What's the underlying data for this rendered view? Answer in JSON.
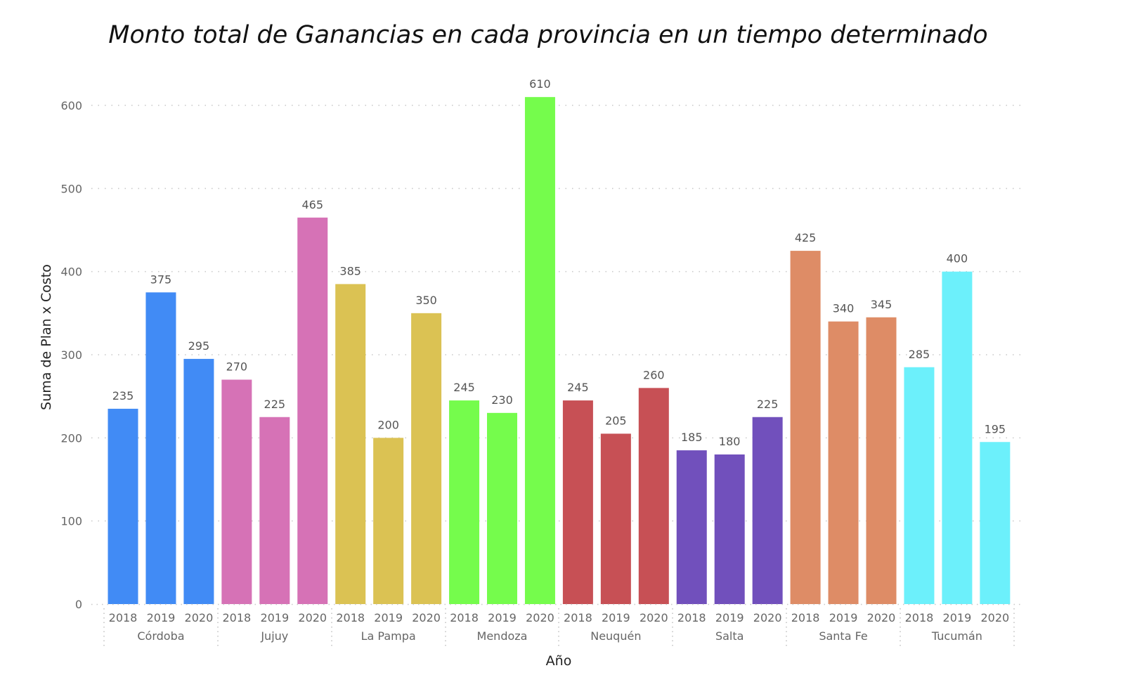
{
  "chart_data": {
    "type": "bar",
    "title": "Monto total de Ganancias en cada provincia en un tiempo determinado",
    "xlabel": "Año",
    "ylabel": "Suma de Plan x Costo",
    "ylim": [
      0,
      600
    ],
    "yticks": [
      0,
      100,
      200,
      300,
      400,
      500,
      600
    ],
    "grid": true,
    "groups": [
      {
        "name": "Córdoba",
        "color": "#418BF5",
        "years": [
          "2018",
          "2019",
          "2020"
        ],
        "values": [
          235,
          375,
          295
        ]
      },
      {
        "name": "Jujuy",
        "color": "#D672B6",
        "years": [
          "2018",
          "2019",
          "2020"
        ],
        "values": [
          270,
          225,
          465
        ]
      },
      {
        "name": "La Pampa",
        "color": "#DBC253",
        "years": [
          "2018",
          "2019",
          "2020"
        ],
        "values": [
          385,
          200,
          350
        ]
      },
      {
        "name": "Mendoza",
        "color": "#75FC4C",
        "years": [
          "2018",
          "2019",
          "2020"
        ],
        "values": [
          245,
          230,
          610
        ]
      },
      {
        "name": "Neuquén",
        "color": "#C75055",
        "years": [
          "2018",
          "2019",
          "2020"
        ],
        "values": [
          245,
          205,
          260
        ]
      },
      {
        "name": "Salta",
        "color": "#7150BC",
        "years": [
          "2018",
          "2019",
          "2020"
        ],
        "values": [
          185,
          180,
          225
        ]
      },
      {
        "name": "Santa Fe",
        "color": "#DE8C66",
        "years": [
          "2018",
          "2019",
          "2020"
        ],
        "values": [
          425,
          340,
          345
        ]
      },
      {
        "name": "Tucumán",
        "color": "#6CF0FB",
        "years": [
          "2018",
          "2019",
          "2020"
        ],
        "values": [
          285,
          400,
          195
        ]
      }
    ]
  }
}
